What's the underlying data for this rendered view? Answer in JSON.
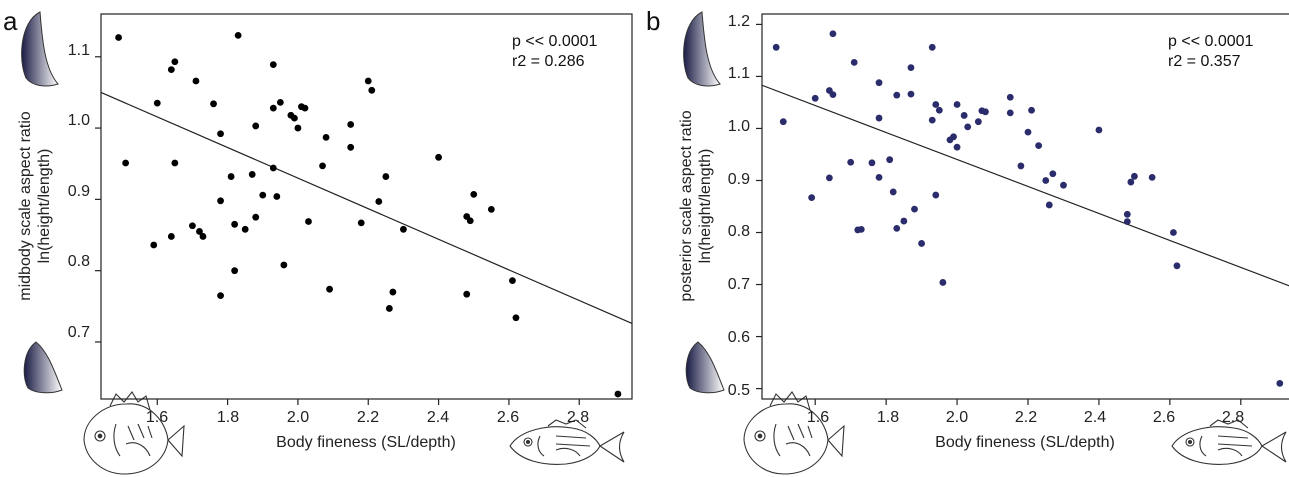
{
  "chart_data": [
    {
      "type": "scatter",
      "panel_label": "a",
      "xlabel": "Body fineness (SL/depth)",
      "ylabel_line1": "midbody scale aspect ratio",
      "ylabel_line2": "ln(height/length)",
      "annotation_p": "p << 0.0001",
      "annotation_r2": "r2 = 0.286",
      "xlim": [
        1.44,
        2.95
      ],
      "ylim": [
        0.62,
        1.16
      ],
      "x_ticks": [
        "1.6",
        "1.8",
        "2.0",
        "2.2",
        "2.4",
        "2.6",
        "2.8"
      ],
      "y_ticks": [
        "0.7",
        "0.8",
        "0.9",
        "1.0",
        "1.1"
      ],
      "point_color": "#000000",
      "fit_line": {
        "x": [
          1.44,
          2.95
        ],
        "y": [
          1.05,
          0.726
        ]
      },
      "points": [
        [
          1.49,
          1.127
        ],
        [
          1.51,
          0.951
        ],
        [
          1.59,
          0.836
        ],
        [
          1.6,
          1.035
        ],
        [
          1.64,
          0.848
        ],
        [
          1.64,
          1.082
        ],
        [
          1.65,
          1.093
        ],
        [
          1.65,
          0.951
        ],
        [
          1.7,
          0.863
        ],
        [
          1.71,
          1.066
        ],
        [
          1.72,
          0.855
        ],
        [
          1.73,
          0.848
        ],
        [
          1.76,
          1.034
        ],
        [
          1.78,
          0.898
        ],
        [
          1.78,
          0.992
        ],
        [
          1.78,
          0.765
        ],
        [
          1.81,
          0.932
        ],
        [
          1.82,
          0.8
        ],
        [
          1.82,
          0.865
        ],
        [
          1.83,
          1.13
        ],
        [
          1.85,
          0.858
        ],
        [
          1.87,
          0.935
        ],
        [
          1.88,
          1.003
        ],
        [
          1.88,
          0.875
        ],
        [
          1.9,
          0.906
        ],
        [
          1.93,
          0.944
        ],
        [
          1.93,
          1.028
        ],
        [
          1.93,
          1.089
        ],
        [
          1.94,
          0.904
        ],
        [
          1.95,
          1.036
        ],
        [
          1.96,
          0.808
        ],
        [
          1.98,
          1.018
        ],
        [
          1.99,
          1.014
        ],
        [
          2.0,
          1.0
        ],
        [
          2.01,
          1.03
        ],
        [
          2.02,
          1.028
        ],
        [
          2.03,
          0.869
        ],
        [
          2.07,
          0.947
        ],
        [
          2.08,
          0.987
        ],
        [
          2.09,
          0.774
        ],
        [
          2.15,
          1.005
        ],
        [
          2.15,
          0.973
        ],
        [
          2.18,
          0.867
        ],
        [
          2.2,
          1.066
        ],
        [
          2.21,
          1.053
        ],
        [
          2.23,
          0.897
        ],
        [
          2.25,
          0.932
        ],
        [
          2.26,
          0.747
        ],
        [
          2.27,
          0.77
        ],
        [
          2.3,
          0.858
        ],
        [
          2.4,
          0.959
        ],
        [
          2.48,
          0.876
        ],
        [
          2.48,
          0.767
        ],
        [
          2.49,
          0.87
        ],
        [
          2.5,
          0.907
        ],
        [
          2.55,
          0.886
        ],
        [
          2.61,
          0.786
        ],
        [
          2.62,
          0.734
        ],
        [
          2.91,
          0.627
        ]
      ]
    },
    {
      "type": "scatter",
      "panel_label": "b",
      "xlabel": "Body fineness (SL/depth)",
      "ylabel_line1": "posterior scale aspect ratio",
      "ylabel_line2": "ln(height/length)",
      "annotation_p": "p << 0.0001",
      "annotation_r2": "r2 = 0.357",
      "xlim": [
        1.45,
        2.95
      ],
      "ylim": [
        0.48,
        1.22
      ],
      "x_ticks": [
        "1.6",
        "1.8",
        "2.0",
        "2.2",
        "2.4",
        "2.6",
        "2.8"
      ],
      "y_ticks": [
        "0.5",
        "0.6",
        "0.7",
        "0.8",
        "0.9",
        "1.0",
        "1.1",
        "1.2"
      ],
      "point_color": "#2b2c6b",
      "fit_line": {
        "x": [
          1.45,
          2.95
        ],
        "y": [
          1.083,
          0.694
        ]
      },
      "points": [
        [
          1.49,
          1.156
        ],
        [
          1.51,
          1.013
        ],
        [
          1.59,
          0.867
        ],
        [
          1.6,
          1.058
        ],
        [
          1.64,
          0.905
        ],
        [
          1.64,
          1.073
        ],
        [
          1.65,
          1.065
        ],
        [
          1.65,
          1.182
        ],
        [
          1.7,
          0.935
        ],
        [
          1.71,
          1.127
        ],
        [
          1.72,
          0.805
        ],
        [
          1.73,
          0.806
        ],
        [
          1.76,
          0.934
        ],
        [
          1.78,
          0.906
        ],
        [
          1.78,
          1.02
        ],
        [
          1.78,
          1.088
        ],
        [
          1.81,
          0.94
        ],
        [
          1.82,
          0.878
        ],
        [
          1.83,
          0.808
        ],
        [
          1.83,
          1.064
        ],
        [
          1.85,
          0.822
        ],
        [
          1.87,
          1.066
        ],
        [
          1.87,
          1.117
        ],
        [
          1.88,
          0.845
        ],
        [
          1.9,
          0.779
        ],
        [
          1.93,
          1.016
        ],
        [
          1.93,
          1.156
        ],
        [
          1.94,
          1.046
        ],
        [
          1.94,
          0.872
        ],
        [
          1.95,
          1.035
        ],
        [
          1.96,
          0.704
        ],
        [
          1.98,
          0.978
        ],
        [
          1.99,
          0.984
        ],
        [
          2.0,
          0.964
        ],
        [
          2.0,
          1.046
        ],
        [
          2.02,
          1.025
        ],
        [
          2.03,
          1.003
        ],
        [
          2.06,
          1.013
        ],
        [
          2.07,
          1.034
        ],
        [
          2.08,
          1.032
        ],
        [
          2.15,
          1.06
        ],
        [
          2.15,
          1.03
        ],
        [
          2.18,
          0.928
        ],
        [
          2.2,
          0.993
        ],
        [
          2.21,
          1.035
        ],
        [
          2.23,
          0.967
        ],
        [
          2.25,
          0.9
        ],
        [
          2.26,
          0.853
        ],
        [
          2.27,
          0.913
        ],
        [
          2.3,
          0.891
        ],
        [
          2.4,
          0.997
        ],
        [
          2.48,
          0.835
        ],
        [
          2.48,
          0.821
        ],
        [
          2.49,
          0.897
        ],
        [
          2.5,
          0.908
        ],
        [
          2.55,
          0.906
        ],
        [
          2.61,
          0.8
        ],
        [
          2.62,
          0.736
        ],
        [
          2.91,
          0.51
        ]
      ]
    }
  ]
}
